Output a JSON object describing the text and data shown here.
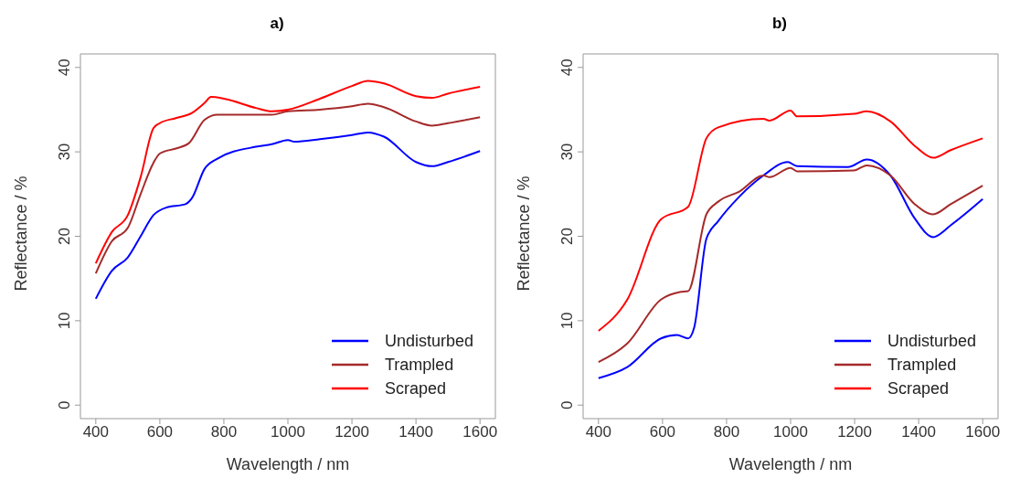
{
  "chart_data": [
    {
      "type": "line",
      "title": "a)",
      "xlabel": "Wavelength / nm",
      "ylabel": "Reflectance / %",
      "xlim": [
        352,
        1648
      ],
      "ylim": [
        -1.6,
        41.6
      ],
      "xticks": [
        400,
        600,
        800,
        1000,
        1200,
        1400,
        1600
      ],
      "yticks": [
        0,
        10,
        20,
        30,
        40
      ],
      "legend": "bottom right",
      "marker": "none",
      "line_style": "solid",
      "series": [
        {
          "name": "Undisturbed",
          "color": "#0000ff",
          "x": [
            400,
            450,
            500,
            540,
            580,
            620,
            680,
            700,
            740,
            780,
            900,
            950,
            1000,
            1020,
            1100,
            1200,
            1250,
            1300,
            1400,
            1450,
            1500,
            1600
          ],
          "values": [
            12.6,
            15.9,
            17.5,
            20,
            22.5,
            23.4,
            23.8,
            24.5,
            28,
            29.2,
            30.6,
            30.9,
            31.4,
            31.2,
            31.5,
            32,
            32.3,
            31.8,
            28.8,
            28.3,
            28.8,
            30.1
          ]
        },
        {
          "name": "Trampled",
          "color": "#a52a2a",
          "x": [
            400,
            450,
            500,
            540,
            580,
            600,
            650,
            690,
            740,
            780,
            900,
            950,
            1000,
            1100,
            1200,
            1250,
            1300,
            1400,
            1450,
            1500,
            1600
          ],
          "values": [
            15.6,
            19.4,
            21,
            25,
            28.7,
            29.8,
            30.4,
            31,
            33.8,
            34.4,
            34.4,
            34.4,
            34.8,
            35,
            35.4,
            35.7,
            35.3,
            33.6,
            33.1,
            33.4,
            34.1
          ]
        },
        {
          "name": "Scraped",
          "color": "#ff0000",
          "x": [
            400,
            450,
            500,
            540,
            580,
            600,
            650,
            700,
            740,
            760,
            800,
            900,
            950,
            1000,
            1100,
            1200,
            1250,
            1300,
            1400,
            1450,
            1500,
            1600
          ],
          "values": [
            16.8,
            20.5,
            22.5,
            27,
            32.8,
            33.4,
            34,
            34.6,
            35.8,
            36.5,
            36.3,
            35.2,
            34.8,
            35,
            36.3,
            37.8,
            38.4,
            38.1,
            36.6,
            36.4,
            36.9,
            37.7
          ]
        }
      ]
    },
    {
      "type": "line",
      "title": "b)",
      "xlabel": "Wavelength / nm",
      "ylabel": "Reflectance / %",
      "xlim": [
        352,
        1648
      ],
      "ylim": [
        -1.6,
        41.6
      ],
      "xticks": [
        400,
        600,
        800,
        1000,
        1200,
        1400,
        1600
      ],
      "yticks": [
        0,
        10,
        20,
        30,
        40
      ],
      "legend": "bottom right",
      "marker": "none",
      "line_style": "solid",
      "series": [
        {
          "name": "Undisturbed",
          "color": "#0000ff",
          "x": [
            400,
            490,
            595,
            645,
            680,
            699,
            737,
            774,
            840,
            915,
            991,
            1020,
            1179,
            1238,
            1312,
            1388,
            1445,
            1500,
            1600
          ],
          "values": [
            3.2,
            4.5,
            7.9,
            8.3,
            7.9,
            9.2,
            19.7,
            21.8,
            24.7,
            27.2,
            28.8,
            28.3,
            28.2,
            29.1,
            27.2,
            22.1,
            19.9,
            21.3,
            24.4
          ]
        },
        {
          "name": "Trampled",
          "color": "#a52a2a",
          "x": [
            400,
            490,
            595,
            654,
            680,
            737,
            774,
            840,
            915,
            934,
            1000,
            1020,
            1198,
            1238,
            1312,
            1388,
            1445,
            1500,
            1600
          ],
          "values": [
            5.1,
            7.3,
            12.5,
            13.4,
            13.5,
            22.6,
            24.1,
            25.3,
            27.2,
            27,
            28.1,
            27.7,
            27.8,
            28.4,
            27.2,
            23.8,
            22.6,
            23.8,
            26
          ]
        },
        {
          "name": "Scraped",
          "color": "#ff0000",
          "x": [
            400,
            490,
            595,
            680,
            737,
            774,
            915,
            934,
            1000,
            1020,
            1198,
            1238,
            1312,
            1388,
            1445,
            1500,
            1600
          ],
          "values": [
            8.8,
            12.5,
            22,
            23.5,
            31.6,
            32.9,
            33.9,
            33.7,
            34.9,
            34.2,
            34.5,
            34.8,
            33.6,
            30.7,
            29.3,
            30.2,
            31.6
          ]
        }
      ]
    }
  ]
}
